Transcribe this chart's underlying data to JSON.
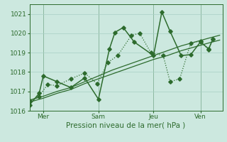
{
  "bg_color": "#cce8df",
  "grid_color": "#a8cfc4",
  "line_color": "#2d6b2d",
  "title": "Pression niveau de la mer( hPa )",
  "ylim": [
    1016,
    1021.5
  ],
  "yticks": [
    1016,
    1017,
    1018,
    1019,
    1020,
    1021
  ],
  "xlim": [
    0,
    7.0
  ],
  "xtick_positions": [
    0.5,
    2.5,
    4.5,
    6.2
  ],
  "xtick_labels": [
    "Mer",
    "Sam",
    "Jeu",
    "Ven"
  ],
  "vline_positions": [
    0.5,
    2.5,
    4.5,
    6.2
  ],
  "series": [
    {
      "x": [
        0.0,
        0.35,
        0.5,
        1.0,
        1.5,
        2.0,
        2.5,
        2.9,
        3.1,
        3.4,
        3.8,
        4.5,
        4.8,
        5.1,
        5.5,
        5.85,
        6.2,
        6.5,
        6.65
      ],
      "y": [
        1016.3,
        1016.9,
        1017.8,
        1017.5,
        1017.2,
        1017.7,
        1016.6,
        1019.2,
        1020.05,
        1020.3,
        1019.55,
        1018.85,
        1021.1,
        1020.1,
        1018.85,
        1018.9,
        1019.55,
        1019.2,
        1019.7
      ],
      "style": "solid",
      "marker": "D",
      "markersize": 2.8,
      "linewidth": 1.1
    },
    {
      "x": [
        0.0,
        0.5,
        1.0,
        1.5,
        2.0,
        2.5,
        3.0,
        3.5,
        4.0,
        4.5,
        5.0,
        5.5,
        6.0,
        6.5,
        6.9
      ],
      "y": [
        1016.55,
        1016.75,
        1017.0,
        1017.2,
        1017.5,
        1017.8,
        1018.1,
        1018.35,
        1018.6,
        1018.85,
        1019.1,
        1019.35,
        1019.55,
        1019.75,
        1019.9
      ],
      "style": "solid",
      "marker": null,
      "markersize": 0,
      "linewidth": 0.9
    },
    {
      "x": [
        0.0,
        0.5,
        1.0,
        1.5,
        2.0,
        2.5,
        3.0,
        3.5,
        4.0,
        4.5,
        5.0,
        5.5,
        6.0,
        6.5,
        6.9
      ],
      "y": [
        1016.45,
        1016.65,
        1016.9,
        1017.1,
        1017.4,
        1017.65,
        1017.9,
        1018.15,
        1018.4,
        1018.65,
        1018.85,
        1019.1,
        1019.3,
        1019.5,
        1019.65
      ],
      "style": "solid",
      "marker": null,
      "markersize": 0,
      "linewidth": 0.9
    },
    {
      "x": [
        0.0,
        0.35,
        0.65,
        1.0,
        1.5,
        2.0,
        2.45,
        2.85,
        3.2,
        3.7,
        4.0,
        4.4,
        4.85,
        5.1,
        5.45,
        5.85,
        6.2,
        6.5,
        6.65
      ],
      "y": [
        1016.5,
        1016.75,
        1017.35,
        1017.3,
        1017.65,
        1017.95,
        1017.4,
        1018.5,
        1018.85,
        1019.9,
        1020.0,
        1019.0,
        1018.85,
        1017.5,
        1017.65,
        1019.5,
        1019.6,
        1019.15,
        1019.7
      ],
      "style": "dotted",
      "marker": "D",
      "markersize": 2.8,
      "linewidth": 0.9
    }
  ]
}
